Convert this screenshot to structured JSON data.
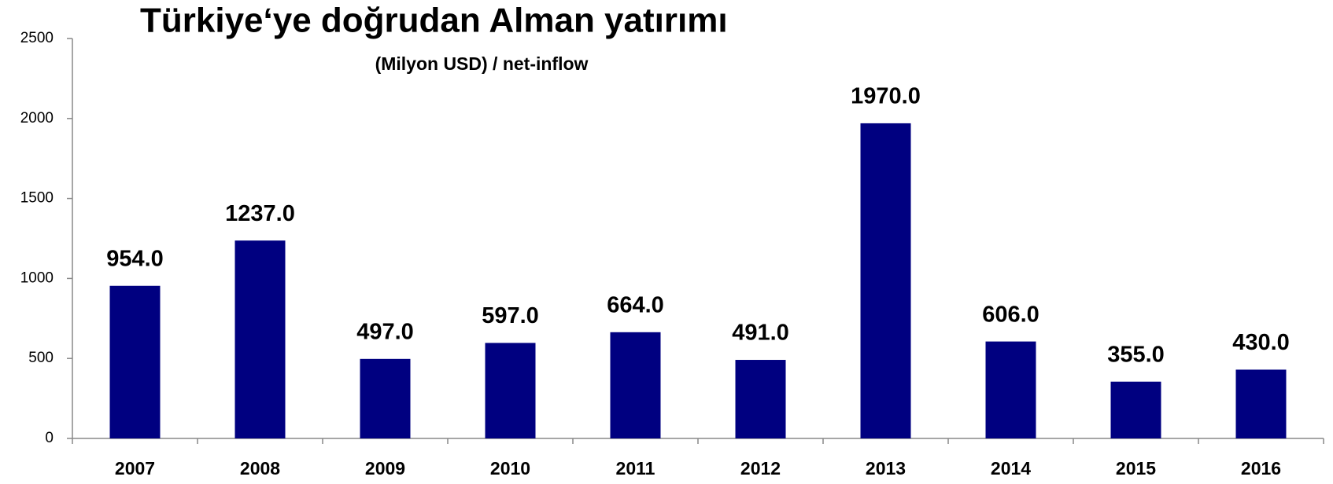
{
  "chart_data": {
    "type": "bar",
    "title": "Türkiye‘ye doğrudan Alman yatırımı",
    "subtitle": "(Milyon USD) / net-inflow",
    "categories": [
      "2007",
      "2008",
      "2009",
      "2010",
      "2011",
      "2012",
      "2013",
      "2014",
      "2015",
      "2016"
    ],
    "values": [
      954,
      1237,
      497,
      597,
      664,
      491,
      1970,
      606,
      355,
      430
    ],
    "value_labels": [
      "954.0",
      "1237.0",
      "497.0",
      "597.0",
      "664.0",
      "491.0",
      "1970.0",
      "606.0",
      "355.0",
      "430.0"
    ],
    "color": "#000080",
    "ylim": [
      0,
      2500
    ],
    "yticks": [
      0,
      500,
      1000,
      1500,
      2000,
      2500
    ],
    "grid": false
  }
}
